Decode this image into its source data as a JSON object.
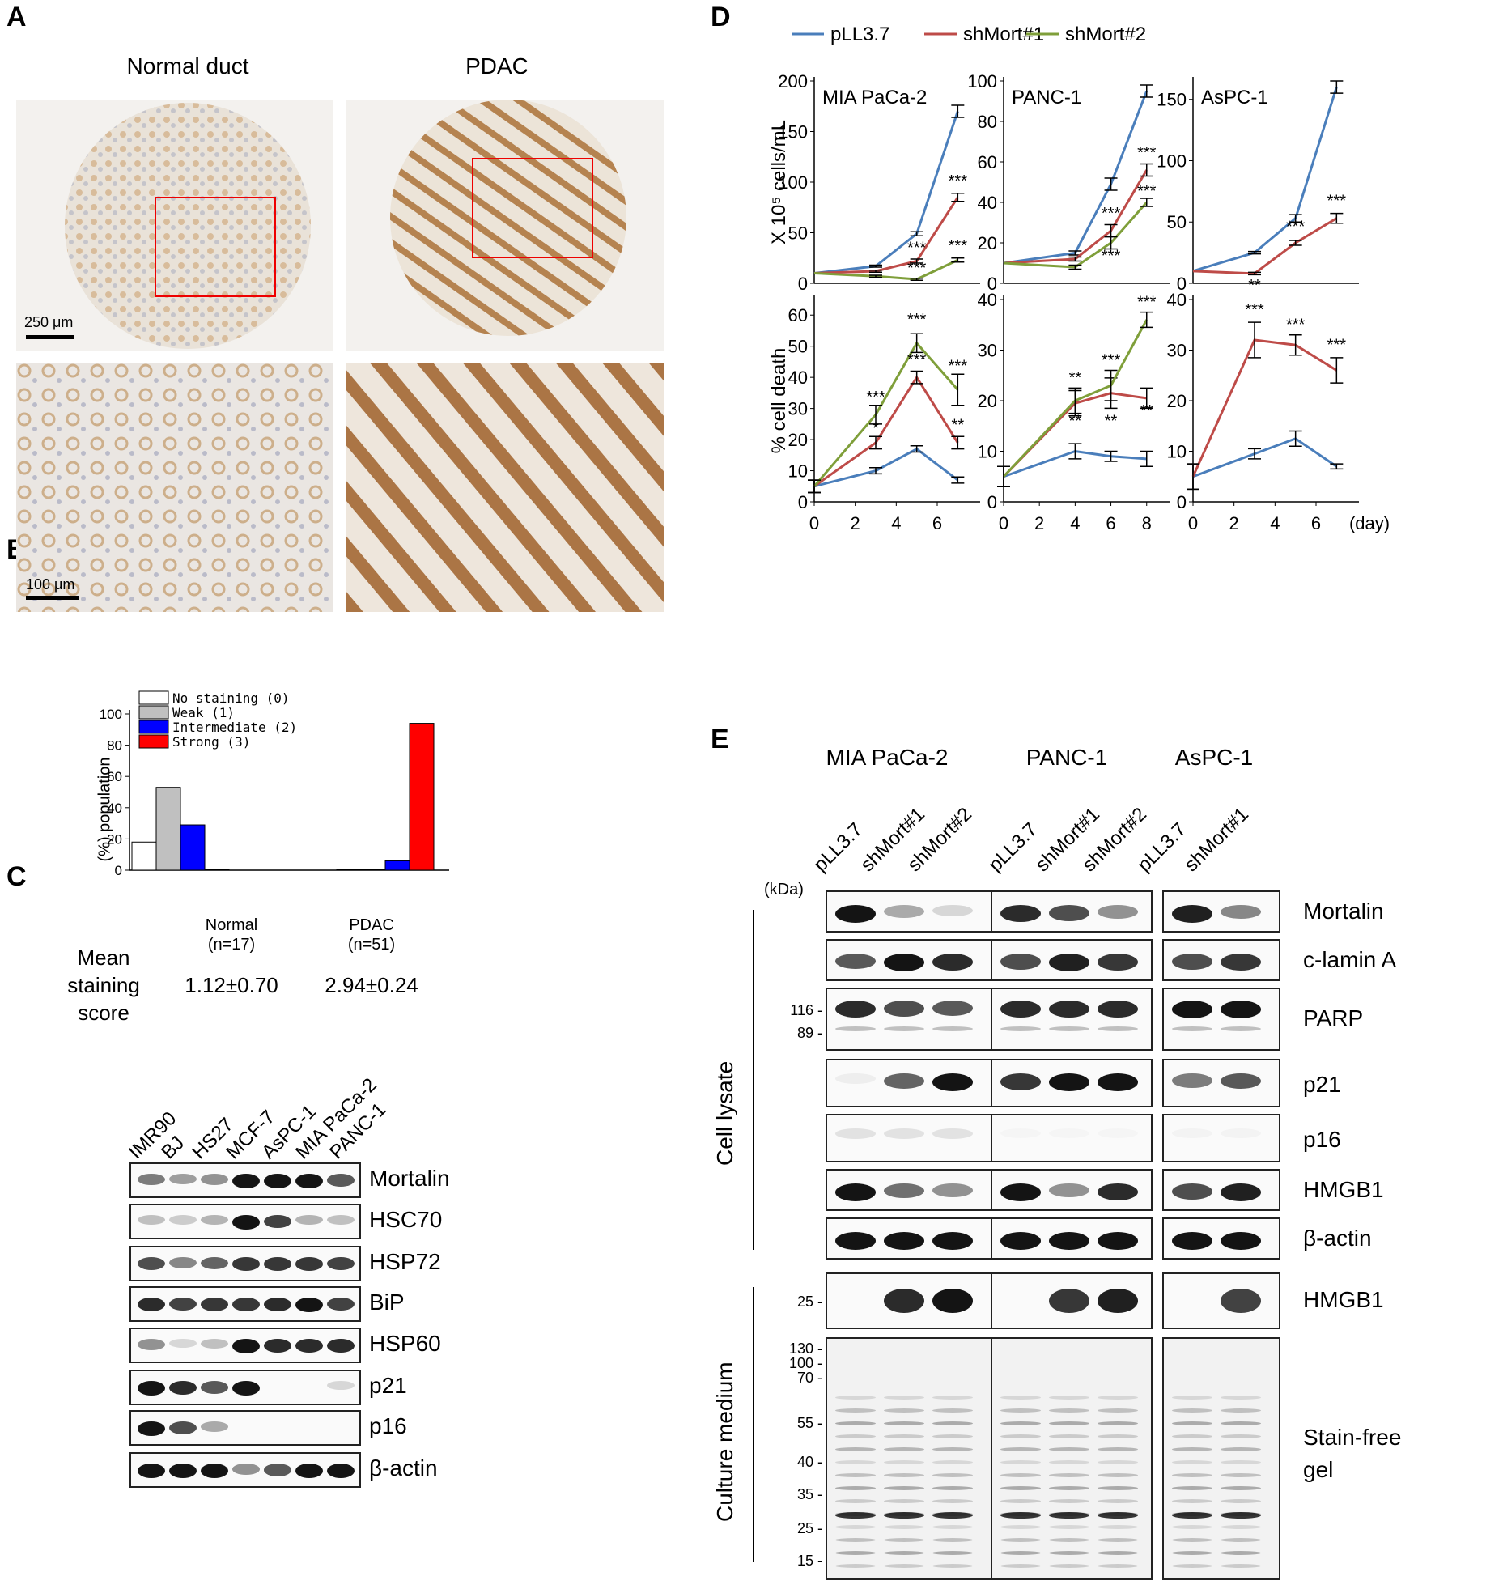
{
  "panels": {
    "A": "A",
    "B": "B",
    "C": "C",
    "D": "D",
    "E": "E"
  },
  "panelA": {
    "col_titles": [
      "Normal duct",
      "PDAC"
    ],
    "scale_top": "250 μm",
    "scale_bottom": "100 μm"
  },
  "panelB": {
    "ylabel": "(%) population",
    "yticks": [
      "0",
      "20",
      "40",
      "60",
      "80",
      "100"
    ],
    "groups": [
      {
        "label": "Normal",
        "n": "(n=17)",
        "score": "1.12±0.70"
      },
      {
        "label": "PDAC",
        "n": "(n=51)",
        "score": "2.94±0.24"
      }
    ],
    "legend": [
      "No staining (0)",
      "Weak (1)",
      "Intermediate (2)",
      "Strong (3)"
    ],
    "colors": [
      "#ffffff",
      "#c0c0c0",
      "#0000ff",
      "#ff0000"
    ],
    "mean_label": [
      "Mean",
      "staining",
      "score"
    ]
  },
  "chart_data": [
    {
      "type": "bar",
      "panel": "B",
      "categories": [
        "Normal (n=17)",
        "PDAC (n=51)"
      ],
      "series": [
        {
          "name": "No staining (0)",
          "values": [
            18,
            0.5
          ]
        },
        {
          "name": "Weak (1)",
          "values": [
            53,
            0.5
          ]
        },
        {
          "name": "Intermediate (2)",
          "values": [
            29,
            6
          ]
        },
        {
          "name": "Strong (3)",
          "values": [
            0.5,
            94
          ]
        }
      ],
      "ylabel": "(%) population",
      "ylim": [
        0,
        100
      ]
    },
    {
      "type": "line",
      "panel": "D",
      "legend": [
        "pLL3.7",
        "shMort#1",
        "shMort#2"
      ],
      "colors": [
        "#4a7ebb",
        "#be4b48",
        "#7f9f3a"
      ],
      "xlabel": "(day)",
      "rows": [
        {
          "ylabel": "X 10⁵ cells/mL",
          "charts": [
            {
              "title": "MIA PaCa-2",
              "ylim": [
                0,
                200
              ],
              "yticks": [
                0,
                50,
                100,
                150,
                200
              ],
              "x": [
                0,
                3,
                5,
                7
              ],
              "series": [
                {
                  "name": "pLL3.7",
                  "values": [
                    10,
                    17,
                    49,
                    170
                  ],
                  "err": [
                    0,
                    1,
                    2,
                    6
                  ]
                },
                {
                  "name": "shMort#1",
                  "values": [
                    10,
                    12,
                    22,
                    85
                  ],
                  "err": [
                    0,
                    1,
                    2,
                    4
                  ]
                },
                {
                  "name": "shMort#2",
                  "values": [
                    10,
                    7,
                    4,
                    23
                  ],
                  "err": [
                    0,
                    1,
                    1,
                    2
                  ]
                }
              ],
              "annotations": [
                [
                  "***",
                  7,
                  96
                ],
                [
                  "***",
                  5,
                  30
                ],
                [
                  "***",
                  5,
                  10
                ],
                [
                  "***",
                  7,
                  32
                ]
              ]
            },
            {
              "title": "PANC-1",
              "ylim": [
                0,
                100
              ],
              "yticks": [
                0,
                20,
                40,
                60,
                80,
                100
              ],
              "x": [
                0,
                4,
                6,
                8
              ],
              "series": [
                {
                  "name": "pLL3.7",
                  "values": [
                    10,
                    15,
                    49,
                    95
                  ],
                  "err": [
                    0,
                    1,
                    3,
                    3
                  ]
                },
                {
                  "name": "shMort#1",
                  "values": [
                    10,
                    12,
                    26,
                    56
                  ],
                  "err": [
                    0,
                    1,
                    3,
                    3
                  ]
                },
                {
                  "name": "shMort#2",
                  "values": [
                    10,
                    8,
                    20,
                    40
                  ],
                  "err": [
                    0,
                    1,
                    3,
                    2
                  ]
                }
              ],
              "annotations": [
                [
                  "***",
                  8,
                  62
                ],
                [
                  "***",
                  8,
                  43
                ],
                [
                  "***",
                  6,
                  32
                ],
                [
                  "***",
                  6,
                  11
                ]
              ]
            },
            {
              "title": "AsPC-1",
              "ylim": [
                0,
                165
              ],
              "yticks": [
                0,
                50,
                100,
                150
              ],
              "x": [
                0,
                3,
                5,
                7
              ],
              "series": [
                {
                  "name": "pLL3.7",
                  "values": [
                    10,
                    25,
                    53,
                    160
                  ],
                  "err": [
                    0,
                    1,
                    3,
                    5
                  ]
                },
                {
                  "name": "shMort#1",
                  "values": [
                    10,
                    8,
                    33,
                    53
                  ],
                  "err": [
                    0,
                    1,
                    2,
                    4
                  ]
                }
              ],
              "annotations": [
                [
                  "**",
                  3,
                  -6
                ],
                [
                  "***",
                  5,
                  42
                ],
                [
                  "***",
                  7,
                  63
                ]
              ]
            }
          ]
        },
        {
          "ylabel": "% cell death",
          "charts": [
            {
              "title": "",
              "ylim": [
                0,
                65
              ],
              "yticks": [
                0,
                10,
                20,
                30,
                40,
                50,
                60
              ],
              "x": [
                0,
                3,
                5,
                7
              ],
              "series": [
                {
                  "name": "pLL3.7",
                  "values": [
                    5,
                    10,
                    17,
                    7
                  ],
                  "err": [
                    2,
                    1,
                    1,
                    1
                  ]
                },
                {
                  "name": "shMort#1",
                  "values": [
                    5,
                    19,
                    40,
                    19
                  ],
                  "err": [
                    2,
                    2,
                    2,
                    2
                  ]
                },
                {
                  "name": "shMort#2",
                  "values": [
                    5,
                    28,
                    51,
                    36
                  ],
                  "err": [
                    2,
                    3,
                    3,
                    5
                  ]
                }
              ],
              "annotations": [
                [
                  "***",
                  3,
                  32
                ],
                [
                  "*",
                  3,
                  22
                ],
                [
                  "***",
                  5,
                  57
                ],
                [
                  "***",
                  5,
                  44
                ],
                [
                  "***",
                  7,
                  42
                ],
                [
                  "**",
                  7,
                  23
                ]
              ]
            },
            {
              "title": "",
              "ylim": [
                0,
                40
              ],
              "yticks": [
                0,
                10,
                20,
                30,
                40
              ],
              "x": [
                0,
                4,
                6,
                8
              ],
              "series": [
                {
                  "name": "pLL3.7",
                  "values": [
                    5,
                    10,
                    9,
                    8.5
                  ],
                  "err": [
                    2,
                    1.5,
                    1,
                    1.5
                  ]
                },
                {
                  "name": "shMort#1",
                  "values": [
                    5,
                    19.5,
                    21.5,
                    20.5
                  ],
                  "err": [
                    2,
                    2.5,
                    3,
                    2
                  ]
                },
                {
                  "name": "shMort#2",
                  "values": [
                    5,
                    20,
                    23,
                    36
                  ],
                  "err": [
                    2,
                    2.5,
                    3,
                    1.5
                  ]
                }
              ],
              "annotations": [
                [
                  "**",
                  4,
                  23.5
                ],
                [
                  "**",
                  4,
                  15
                ],
                [
                  "***",
                  6,
                  27
                ],
                [
                  "**",
                  6,
                  15
                ],
                [
                  "***",
                  8,
                  38.5
                ],
                [
                  "**",
                  8,
                  17
                ]
              ]
            },
            {
              "title": "",
              "ylim": [
                0,
                40
              ],
              "yticks": [
                0,
                10,
                20,
                30,
                40
              ],
              "x": [
                0,
                3,
                5,
                7
              ],
              "series": [
                {
                  "name": "pLL3.7",
                  "values": [
                    5,
                    9.5,
                    12.5,
                    7
                  ],
                  "err": [
                    2.5,
                    1,
                    1.5,
                    0.5
                  ]
                },
                {
                  "name": "shMort#1",
                  "values": [
                    5,
                    32,
                    31,
                    26
                  ],
                  "err": [
                    2.5,
                    3.5,
                    2,
                    2.5
                  ]
                }
              ],
              "annotations": [
                [
                  "***",
                  3,
                  37
                ],
                [
                  "***",
                  5,
                  34
                ],
                [
                  "***",
                  7,
                  30
                ]
              ]
            }
          ]
        }
      ]
    }
  ],
  "panelD": {
    "xticks_ab": [
      "0",
      "2",
      "4",
      "6"
    ],
    "xticks_pc": [
      "0",
      "2",
      "4",
      "6",
      "8"
    ],
    "day": "(day)"
  },
  "panelC": {
    "lanes": [
      "IMR90",
      "BJ",
      "HS27",
      "MCF-7",
      "AsPC-1",
      "MIA PaCa-2",
      "PANC-1"
    ],
    "rows": [
      "Mortalin",
      "HSC70",
      "HSP72",
      "BiP",
      "HSP60",
      "p21",
      "p16",
      "β-actin"
    ],
    "intensity": [
      [
        0.55,
        0.4,
        0.45,
        1,
        1,
        1,
        0.7
      ],
      [
        0.25,
        0.2,
        0.3,
        1,
        0.8,
        0.3,
        0.25
      ],
      [
        0.75,
        0.5,
        0.65,
        0.85,
        0.85,
        0.85,
        0.8
      ],
      [
        0.9,
        0.8,
        0.85,
        0.85,
        0.9,
        1,
        0.8
      ],
      [
        0.45,
        0.15,
        0.25,
        1,
        0.9,
        0.9,
        0.9
      ],
      [
        1,
        0.9,
        0.7,
        1,
        0,
        0,
        0.15
      ],
      [
        1,
        0.75,
        0.35,
        0,
        0,
        0,
        0
      ],
      [
        1,
        1,
        1,
        0.45,
        0.7,
        1,
        1
      ]
    ]
  },
  "panelE": {
    "groups": [
      "MIA PaCa-2",
      "PANC-1",
      "AsPC-1"
    ],
    "lanes": [
      [
        "pLL3.7",
        "shMort#1",
        "shMort#2"
      ],
      [
        "pLL3.7",
        "shMort#1",
        "shMort#2"
      ],
      [
        "pLL3.7",
        "shMort#1"
      ]
    ],
    "kda": "(kDa)",
    "side_top": "Cell lysate",
    "side_bottom": "Culture medium",
    "rows": [
      "Mortalin",
      "c-lamin A",
      "PARP",
      "p21",
      "p16",
      "HMGB1",
      "β-actin",
      "HMGB1",
      "Stain-free gel"
    ],
    "parp_markers": [
      "116 -",
      "89 -"
    ],
    "hmgb1_marker": "25 -",
    "gel_markers": [
      "130 -",
      "100 -",
      "70 -",
      "55 -",
      "40 -",
      "35 -",
      "25 -",
      "15 -"
    ],
    "stain_free_lines": [
      "Stain-free",
      "gel"
    ],
    "intensity": [
      [
        1,
        0.35,
        0.15,
        0.9,
        0.75,
        0.45,
        0.95,
        0.5
      ],
      [
        0.7,
        1,
        0.9,
        0.75,
        0.95,
        0.85,
        0.75,
        0.85
      ],
      [
        0.9,
        0.75,
        0.7,
        0.9,
        0.9,
        0.9,
        1,
        1
      ],
      [
        0.05,
        0.65,
        1,
        0.85,
        1,
        1,
        0.55,
        0.7
      ],
      [
        0.1,
        0.1,
        0.1,
        0.02,
        0.02,
        0.02,
        0.03,
        0.03
      ],
      [
        1,
        0.6,
        0.45,
        1,
        0.45,
        0.9,
        0.75,
        0.95
      ],
      [
        1,
        1,
        1,
        1,
        1,
        1,
        1,
        1
      ],
      [
        0,
        0.9,
        1,
        0,
        0.85,
        0.95,
        0,
        0.8
      ]
    ]
  }
}
